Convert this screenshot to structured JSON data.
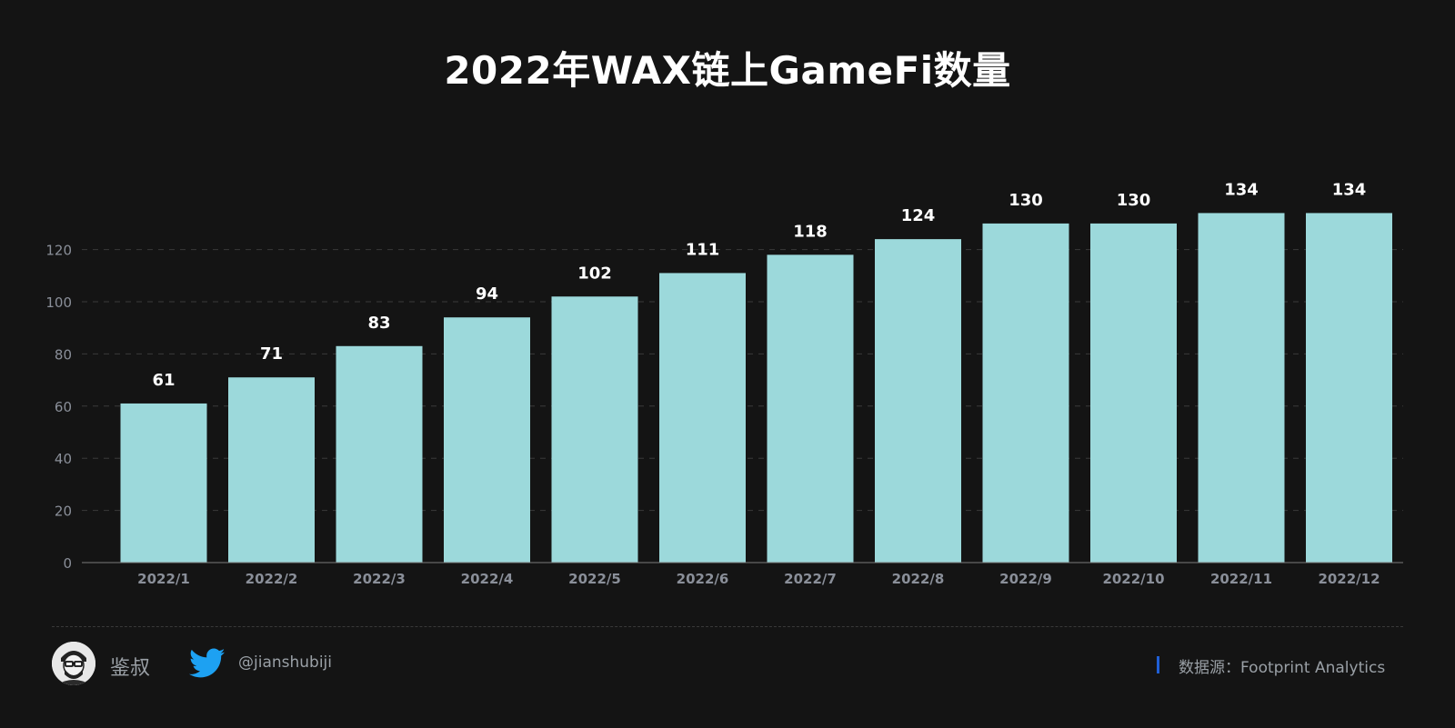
{
  "colors": {
    "background": "#141414",
    "bar": "#9cd9db",
    "grid": "#3a3a3a",
    "tick_text": "#8a8f99",
    "data_label": "#ffffff",
    "source_accent": "#1f5fd6",
    "twitter_blue": "#1da1f2"
  },
  "chart_data": {
    "type": "bar",
    "title": "2022年WAX链上GameFi数量",
    "xlabel": "",
    "ylabel": "",
    "categories": [
      "2022/1",
      "2022/2",
      "2022/3",
      "2022/4",
      "2022/5",
      "2022/6",
      "2022/7",
      "2022/8",
      "2022/9",
      "2022/10",
      "2022/11",
      "2022/12"
    ],
    "values": [
      61,
      71,
      83,
      94,
      102,
      111,
      118,
      124,
      130,
      130,
      134,
      134
    ],
    "ylim": [
      0,
      134
    ],
    "yticks": [
      0,
      20,
      40,
      60,
      80,
      100,
      120
    ],
    "grid": true,
    "legend": false,
    "data_labels": true
  },
  "footer": {
    "author": "鉴叔",
    "avatar_icon": "avatar-portrait-icon",
    "twitter_icon": "twitter-bird-icon",
    "twitter_handle": "@jianshubiji",
    "source": "数据源：Footprint  Analytics"
  }
}
